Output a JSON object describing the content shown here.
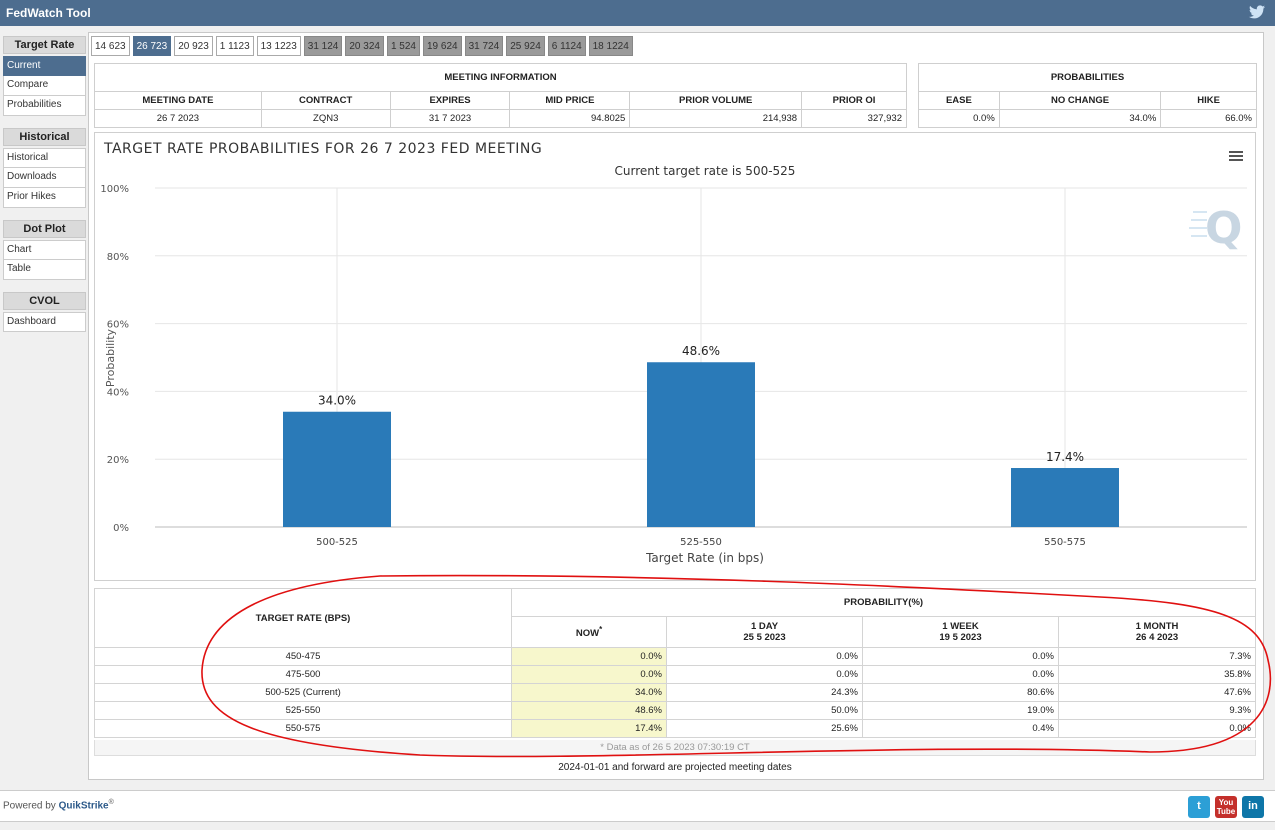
{
  "app": {
    "title": "FedWatch Tool"
  },
  "sidebar": {
    "sections": [
      {
        "heading": "Target Rate",
        "items": [
          "Current",
          "Compare",
          "Probabilities"
        ]
      },
      {
        "heading": "Historical",
        "items": [
          "Historical",
          "Downloads",
          "Prior Hikes"
        ]
      },
      {
        "heading": "Dot Plot",
        "items": [
          "Chart",
          "Table"
        ]
      },
      {
        "heading": "CVOL",
        "items": [
          "Dashboard"
        ]
      }
    ],
    "active_item": "Current"
  },
  "tabs": [
    {
      "label": "14 623",
      "state": "normal"
    },
    {
      "label": "26 723",
      "state": "active"
    },
    {
      "label": "20 923",
      "state": "normal"
    },
    {
      "label": "1 1123",
      "state": "normal"
    },
    {
      "label": "13 1223",
      "state": "normal"
    },
    {
      "label": "31 124",
      "state": "gray"
    },
    {
      "label": "20 324",
      "state": "gray"
    },
    {
      "label": "1 524",
      "state": "gray"
    },
    {
      "label": "19 624",
      "state": "gray"
    },
    {
      "label": "31 724",
      "state": "gray"
    },
    {
      "label": "25 924",
      "state": "gray"
    },
    {
      "label": "6 1124",
      "state": "gray"
    },
    {
      "label": "18 1224",
      "state": "gray"
    }
  ],
  "meeting_info": {
    "heading": "MEETING INFORMATION",
    "headers": [
      "MEETING DATE",
      "CONTRACT",
      "EXPIRES",
      "MID PRICE",
      "PRIOR VOLUME",
      "PRIOR OI"
    ],
    "row": [
      "26 7 2023",
      "ZQN3",
      "31 7 2023",
      "94.8025",
      "214,938",
      "327,932"
    ]
  },
  "probabilities": {
    "heading": "PROBABILITIES",
    "headers": [
      "EASE",
      "NO CHANGE",
      "HIKE"
    ],
    "row": [
      "0.0%",
      "34.0%",
      "66.0%"
    ]
  },
  "chart_data": {
    "type": "bar",
    "title": "TARGET RATE PROBABILITIES FOR 26 7 2023 FED MEETING",
    "subtitle": "Current target rate is 500-525",
    "xlabel": "Target Rate (in bps)",
    "ylabel": "Probability",
    "categories": [
      "500-525",
      "525-550",
      "550-575"
    ],
    "values": [
      34.0,
      48.6,
      17.4
    ],
    "value_labels": [
      "34.0%",
      "48.6%",
      "17.4%"
    ],
    "ylim": [
      0,
      100
    ],
    "yticks": [
      "0%",
      "20%",
      "40%",
      "60%",
      "80%",
      "100%"
    ],
    "bar_color": "#2a7ab8",
    "grid": true,
    "legend": "none"
  },
  "prob_table": {
    "col_target": "TARGET RATE (BPS)",
    "col_group": "PROBABILITY(%)",
    "columns": [
      {
        "label": "NOW",
        "sup": "*",
        "date": ""
      },
      {
        "label": "1 DAY",
        "sup": "",
        "date": "25 5 2023"
      },
      {
        "label": "1 WEEK",
        "sup": "",
        "date": "19 5 2023"
      },
      {
        "label": "1 MONTH",
        "sup": "",
        "date": "26 4 2023"
      }
    ],
    "rows": [
      {
        "rate": "450-475",
        "values": [
          "0.0%",
          "0.0%",
          "0.0%",
          "7.3%"
        ]
      },
      {
        "rate": "475-500",
        "values": [
          "0.0%",
          "0.0%",
          "0.0%",
          "35.8%"
        ]
      },
      {
        "rate": "500-525 (Current)",
        "values": [
          "34.0%",
          "24.3%",
          "80.6%",
          "47.6%"
        ]
      },
      {
        "rate": "525-550",
        "values": [
          "48.6%",
          "50.0%",
          "19.0%",
          "9.3%"
        ]
      },
      {
        "rate": "550-575",
        "values": [
          "17.4%",
          "25.6%",
          "0.4%",
          "0.0%"
        ]
      }
    ],
    "footnote": "* Data as of 26 5 2023 07:30:19 CT"
  },
  "projected_note": "2024-01-01 and forward are projected meeting dates",
  "footer": {
    "powered_by": "Powered by",
    "brand": "QuikStrike",
    "reg": "®"
  },
  "social": [
    {
      "name": "twitter",
      "glyph": "t",
      "color": "#2c9fd6"
    },
    {
      "name": "youtube",
      "glyph": "You\nTube",
      "color": "#c4302b"
    },
    {
      "name": "linkedin",
      "glyph": "in",
      "color": "#0e76a8"
    }
  ]
}
